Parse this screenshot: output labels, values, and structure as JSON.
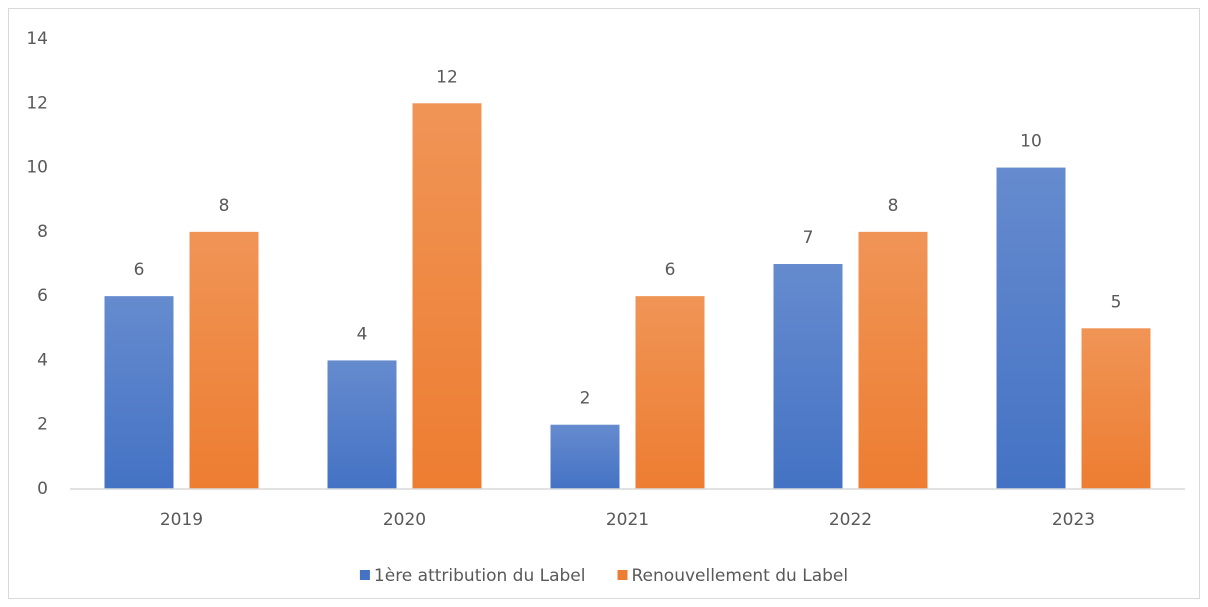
{
  "chart_data": {
    "type": "bar",
    "categories": [
      "2019",
      "2020",
      "2021",
      "2022",
      "2023"
    ],
    "series": [
      {
        "name": "1ère attribution du Label",
        "color": "#4472c4",
        "values": [
          6,
          4,
          2,
          7,
          10
        ]
      },
      {
        "name": "Renouvellement du Label",
        "color": "#ed7d31",
        "values": [
          8,
          12,
          6,
          8,
          5
        ]
      }
    ],
    "ylim": [
      0,
      14
    ],
    "yticks": [
      0,
      2,
      4,
      6,
      8,
      10,
      12,
      14
    ],
    "grid": false,
    "legend": "bottom"
  }
}
